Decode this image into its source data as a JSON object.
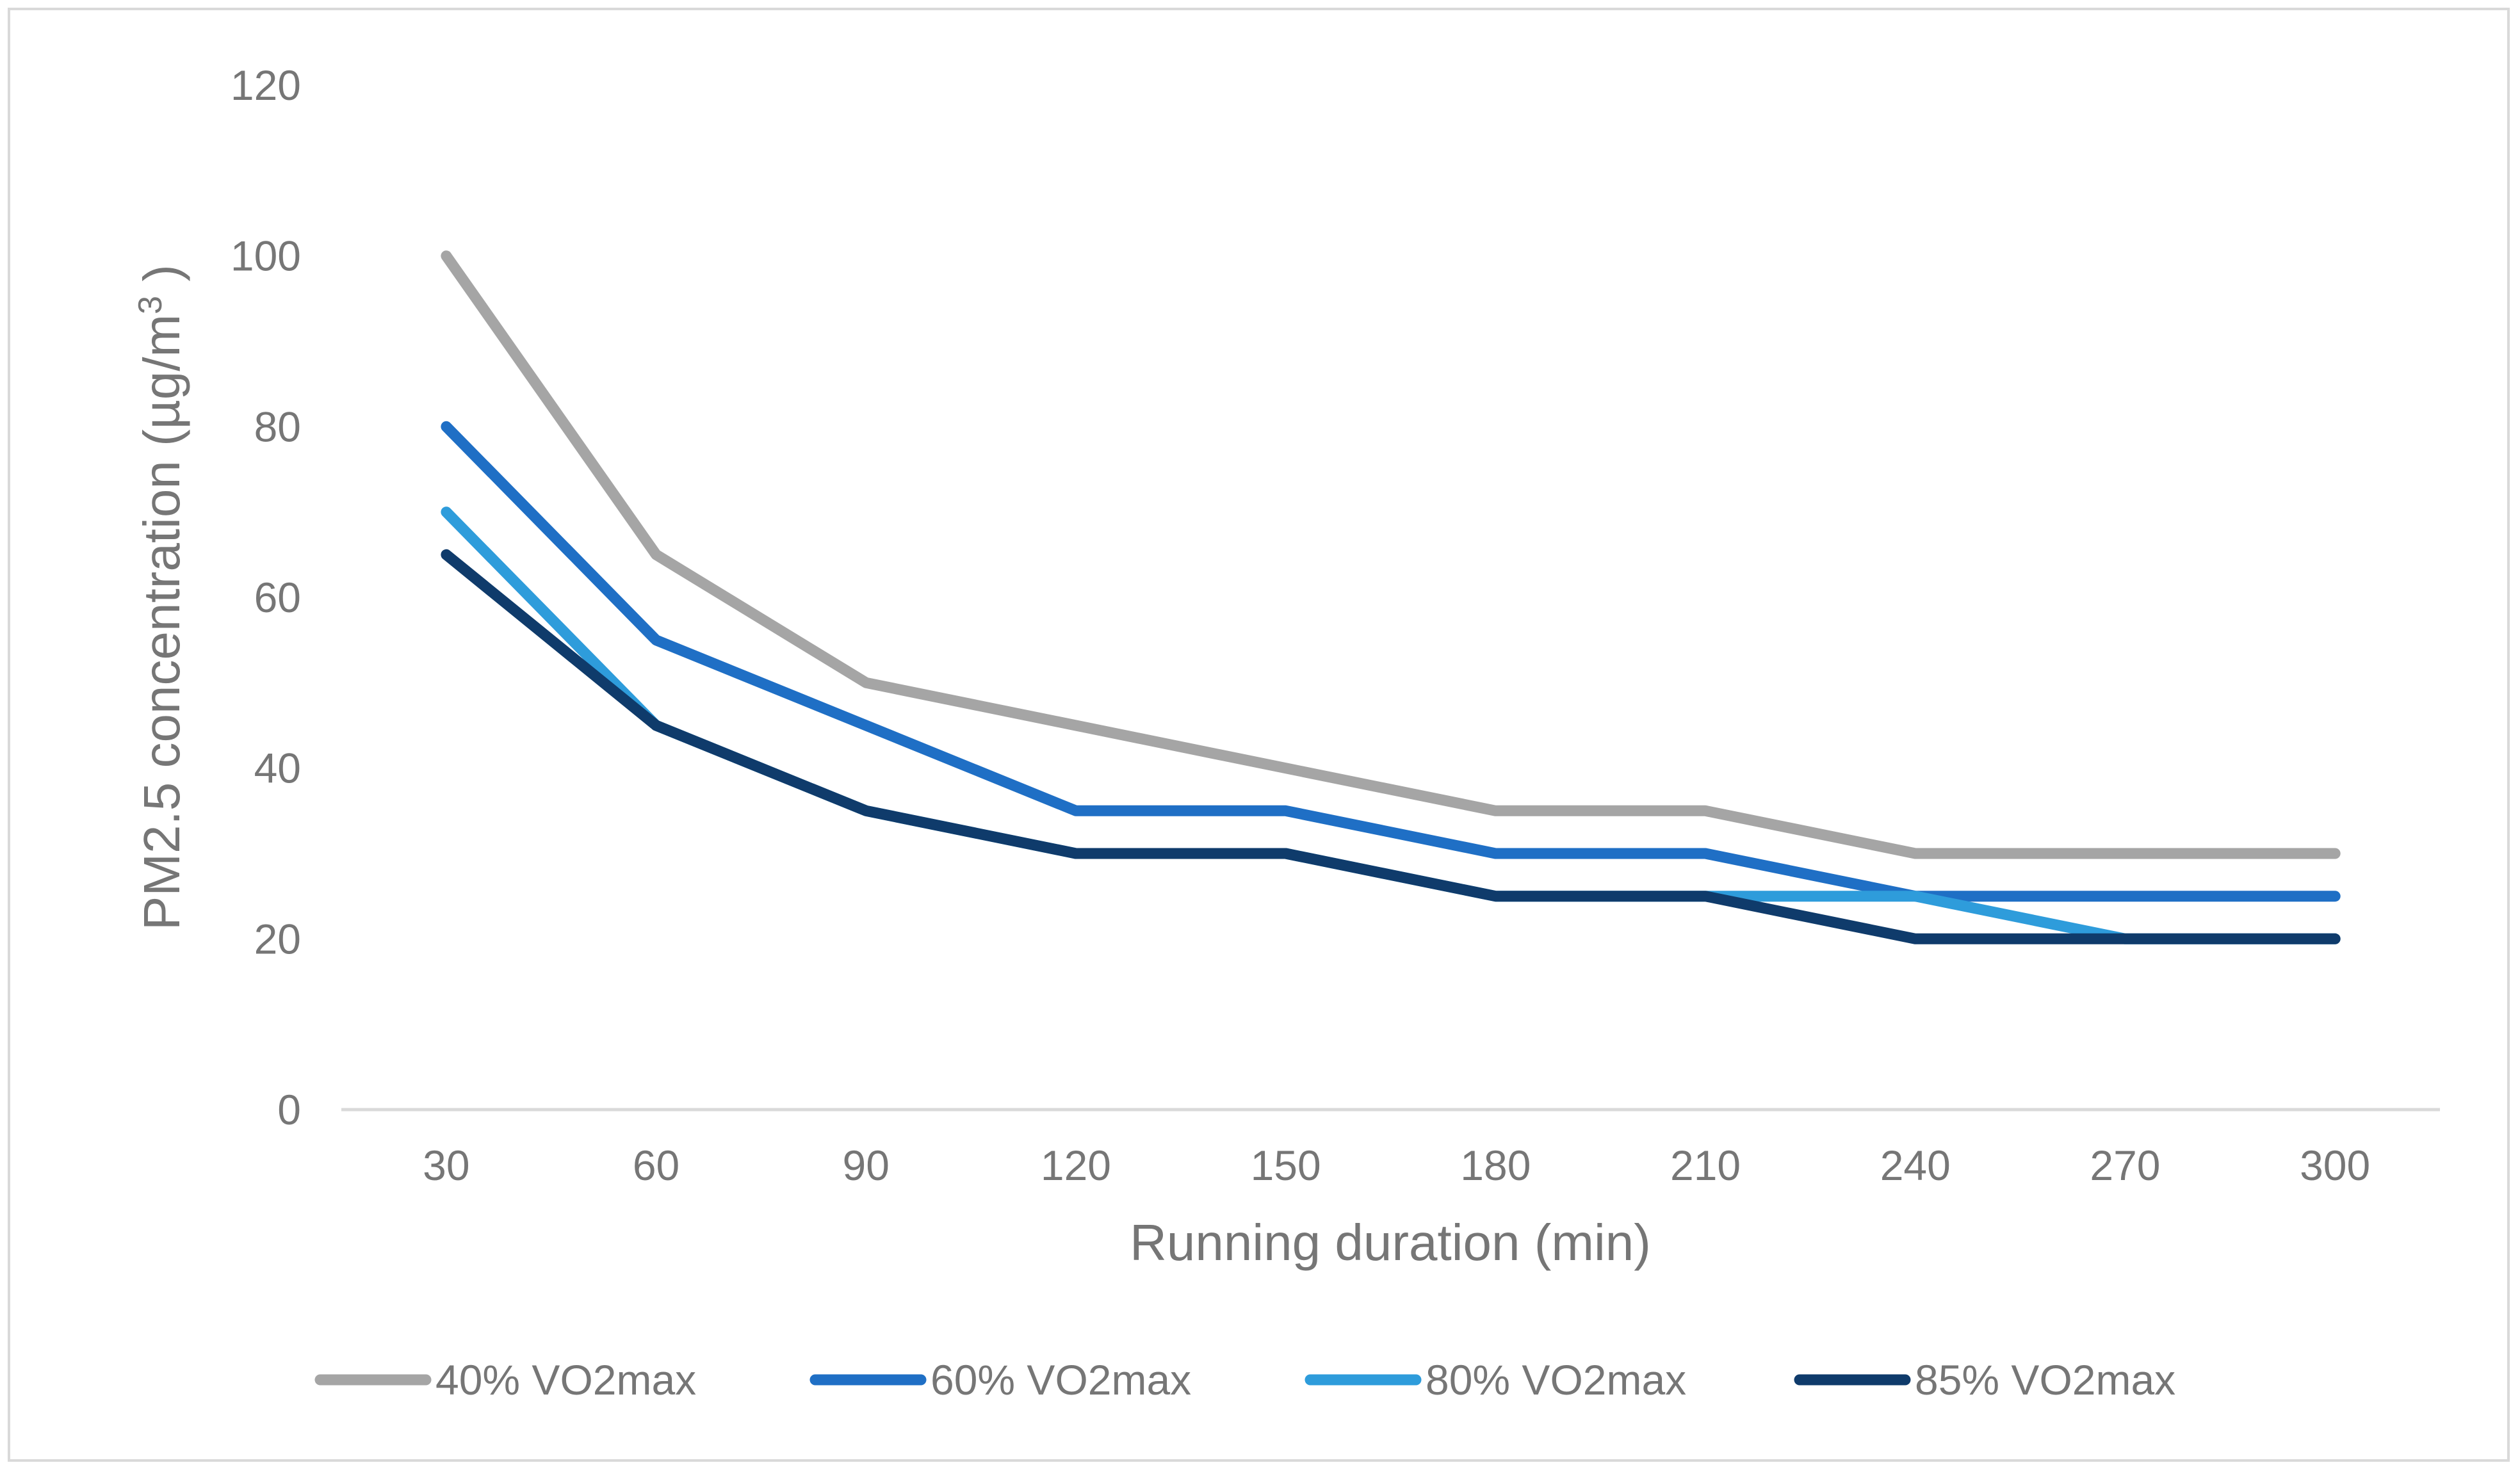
{
  "chart_data": {
    "type": "line",
    "title": "",
    "xlabel": "Running duration (min)",
    "ylabel": "PM2.5 concentration (µg/m",
    "ylabel_sup": "3",
    "ylabel_close": " )",
    "categories": [
      "30",
      "60",
      "90",
      "120",
      "150",
      "180",
      "210",
      "240",
      "270",
      "300"
    ],
    "yticks": [
      "0",
      "20",
      "40",
      "60",
      "80",
      "100",
      "120"
    ],
    "ylim": [
      0,
      120
    ],
    "grid": false,
    "legend_position": "bottom",
    "series": [
      {
        "name": "40% VO2max",
        "color": "#a5a5a5",
        "values": [
          100,
          65,
          50,
          45,
          40,
          35,
          35,
          30,
          30,
          30
        ]
      },
      {
        "name": "60% VO2max",
        "color": "#1f6fc5",
        "values": [
          80,
          55,
          45,
          35,
          35,
          30,
          30,
          25,
          25,
          25
        ]
      },
      {
        "name": "80% VO2max",
        "color": "#2e9cdb",
        "values": [
          70,
          45,
          35,
          30,
          30,
          25,
          25,
          25,
          20,
          20
        ]
      },
      {
        "name": "85% VO2max",
        "color": "#0f3b6b",
        "values": [
          65,
          45,
          35,
          30,
          30,
          25,
          25,
          20,
          20,
          20
        ]
      }
    ]
  }
}
